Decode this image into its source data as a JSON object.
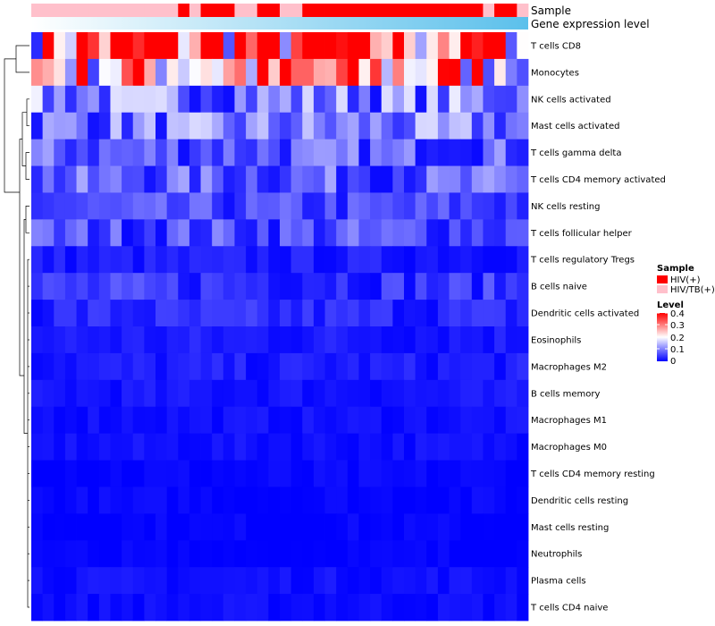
{
  "chart_data": {
    "type": "heatmap",
    "title": "",
    "annotation_tracks": [
      {
        "name": "Sample"
      },
      {
        "name": "Gene expression level"
      }
    ],
    "rows": [
      "T cells CD8",
      "Monocytes",
      "NK cells activated",
      "Mast cells activated",
      "T cells gamma delta",
      "T cells CD4 memory activated",
      "NK cells resting",
      "T cells follicular helper",
      "T cells regulatory  Tregs",
      "B cells naive",
      "Dendritic cells activated",
      "Eosinophils",
      "Macrophages M2",
      "B cells memory",
      "Macrophages M1",
      "Macrophages M0",
      "T cells CD4 memory resting",
      "Dendritic cells resting",
      "Mast cells resting",
      "Neutrophils",
      "Plasma cells",
      "T cells CD4 naive"
    ],
    "row_levels": [
      0.34,
      0.26,
      0.1,
      0.09,
      0.07,
      0.07,
      0.05,
      0.06,
      0.02,
      0.04,
      0.03,
      0.02,
      0.02,
      0.015,
      0.012,
      0.012,
      0.004,
      0.004,
      0.002,
      0.001,
      0.012,
      0.01
    ],
    "n_samples": 44,
    "sample_groups": [
      "HIV/TB(+)",
      "HIV/TB(+)",
      "HIV/TB(+)",
      "HIV/TB(+)",
      "HIV/TB(+)",
      "HIV/TB(+)",
      "HIV/TB(+)",
      "HIV/TB(+)",
      "HIV/TB(+)",
      "HIV/TB(+)",
      "HIV/TB(+)",
      "HIV/TB(+)",
      "HIV/TB(+)",
      "HIV(+)",
      "HIV/TB(+)",
      "HIV(+)",
      "HIV(+)",
      "HIV(+)",
      "HIV/TB(+)",
      "HIV/TB(+)",
      "HIV(+)",
      "HIV(+)",
      "HIV/TB(+)",
      "HIV/TB(+)",
      "HIV(+)",
      "HIV(+)",
      "HIV(+)",
      "HIV(+)",
      "HIV(+)",
      "HIV(+)",
      "HIV(+)",
      "HIV(+)",
      "HIV(+)",
      "HIV(+)",
      "HIV(+)",
      "HIV(+)",
      "HIV(+)",
      "HIV(+)",
      "HIV(+)",
      "HIV(+)",
      "HIV/TB(+)",
      "HIV(+)",
      "HIV(+)",
      "HIV/TB(+)"
    ],
    "legend": {
      "sample_title": "Sample",
      "sample_entries": [
        {
          "label": "HIV(+)",
          "color": "#ff0000"
        },
        {
          "label": "HIV/TB(+)",
          "color": "#ffc0cb"
        }
      ],
      "level_title": "Level",
      "level_ticks": [
        "0.4",
        "0.3",
        "0.2",
        "0.1",
        "0"
      ],
      "level_range": [
        0,
        0.4
      ],
      "level_colors": {
        "low": "#0000ff",
        "mid": "#ffffff",
        "high": "#ff0000"
      }
    },
    "expression_gradient": {
      "start": "#ffffff",
      "end": "#5bc0eb"
    }
  }
}
